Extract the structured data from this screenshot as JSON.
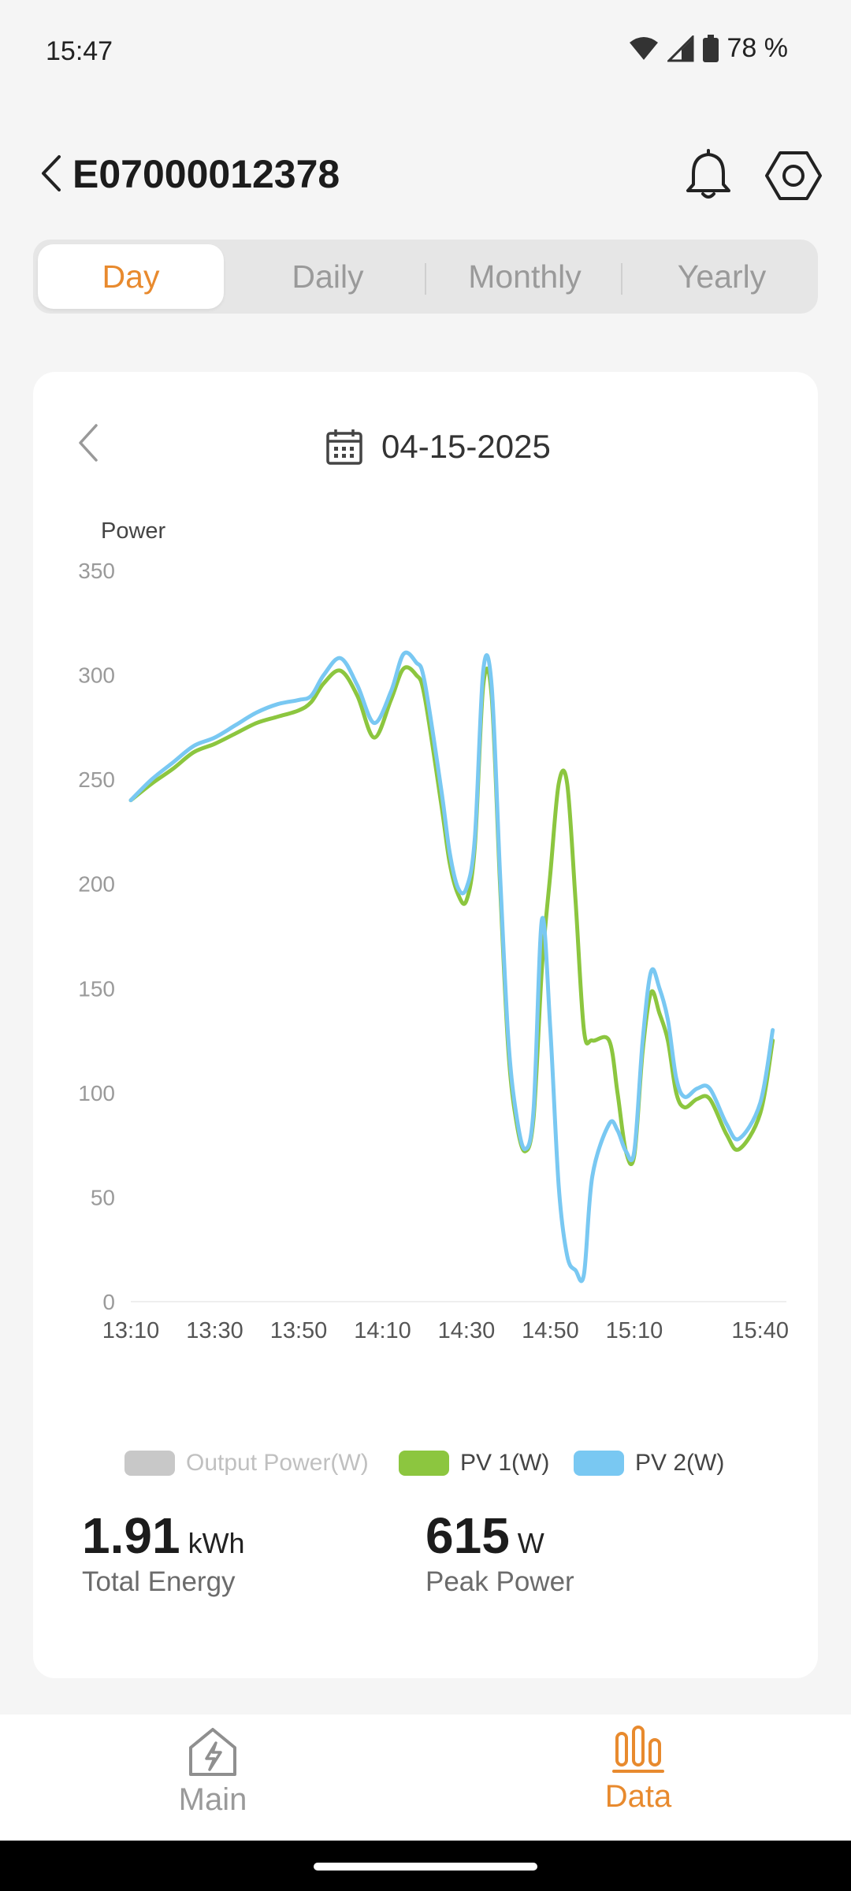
{
  "status": {
    "time": "15:47",
    "battery": "78 %",
    "icons": [
      "wifi-icon",
      "signal-icon",
      "battery-icon"
    ]
  },
  "header": {
    "device_id": "E07000012378",
    "icons": [
      "back-icon",
      "bell-icon",
      "settings-icon"
    ]
  },
  "tabs": [
    {
      "label": "Day",
      "active": true
    },
    {
      "label": "Daily",
      "active": false
    },
    {
      "label": "Monthly",
      "active": false
    },
    {
      "label": "Yearly",
      "active": false
    }
  ],
  "date_picker": {
    "date": "04-15-2025",
    "icons": [
      "chevron-left-icon",
      "calendar-icon"
    ]
  },
  "chart_data": {
    "type": "line",
    "ylabel": "Power",
    "ylim": [
      0,
      350
    ],
    "yticks": [
      "0",
      "50",
      "100",
      "150",
      "200",
      "250",
      "300",
      "350"
    ],
    "xlim": [
      "13:10",
      "15:44"
    ],
    "xticks": [
      "13:10",
      "13:30",
      "13:50",
      "14:10",
      "14:30",
      "14:50",
      "15:10",
      "15:40"
    ],
    "grid": false,
    "legend_position": "bottom",
    "series": [
      {
        "name": "Output Power(W)",
        "color": "#c8c8c8",
        "values": []
      },
      {
        "name": "PV 1(W)",
        "color": "#8cc63f",
        "x": [
          "13:10",
          "13:15",
          "13:20",
          "13:25",
          "13:30",
          "13:35",
          "13:40",
          "13:45",
          "13:50",
          "13:53",
          "13:56",
          "14:00",
          "14:04",
          "14:08",
          "14:12",
          "14:15",
          "14:18",
          "14:20",
          "14:24",
          "14:26",
          "14:28",
          "14:30",
          "14:32",
          "14:34",
          "14:36",
          "14:38",
          "14:40",
          "14:42",
          "14:44",
          "14:46",
          "14:48",
          "14:50",
          "14:52",
          "14:54",
          "14:56",
          "14:58",
          "15:00",
          "15:04",
          "15:06",
          "15:08",
          "15:10",
          "15:12",
          "15:14",
          "15:16",
          "15:18",
          "15:20",
          "15:22",
          "15:25",
          "15:28",
          "15:32",
          "15:35",
          "15:40",
          "15:43"
        ],
        "values": [
          240,
          248,
          255,
          263,
          267,
          272,
          277,
          280,
          283,
          287,
          296,
          302,
          290,
          270,
          288,
          303,
          300,
          290,
          238,
          210,
          195,
          192,
          218,
          295,
          290,
          200,
          120,
          85,
          72,
          88,
          160,
          205,
          248,
          248,
          192,
          130,
          125,
          125,
          100,
          72,
          70,
          120,
          148,
          138,
          125,
          100,
          93,
          97,
          97,
          80,
          73,
          90,
          125
        ]
      },
      {
        "name": "PV 2(W)",
        "color": "#79c8f2",
        "x": [
          "13:10",
          "13:15",
          "13:20",
          "13:25",
          "13:30",
          "13:35",
          "13:40",
          "13:45",
          "13:50",
          "13:53",
          "13:56",
          "14:00",
          "14:04",
          "14:08",
          "14:12",
          "14:15",
          "14:18",
          "14:20",
          "14:24",
          "14:26",
          "14:28",
          "14:30",
          "14:32",
          "14:34",
          "14:36",
          "14:38",
          "14:40",
          "14:42",
          "14:44",
          "14:46",
          "14:48",
          "14:50",
          "14:52",
          "14:54",
          "14:56",
          "14:58",
          "15:00",
          "15:04",
          "15:06",
          "15:08",
          "15:10",
          "15:12",
          "15:14",
          "15:16",
          "15:18",
          "15:20",
          "15:22",
          "15:25",
          "15:28",
          "15:32",
          "15:35",
          "15:40",
          "15:43"
        ],
        "values": [
          240,
          250,
          258,
          266,
          270,
          276,
          282,
          286,
          288,
          290,
          300,
          308,
          295,
          277,
          292,
          310,
          306,
          297,
          245,
          215,
          198,
          198,
          222,
          302,
          295,
          205,
          125,
          88,
          73,
          92,
          183,
          130,
          55,
          22,
          15,
          13,
          60,
          85,
          82,
          72,
          72,
          125,
          158,
          150,
          135,
          107,
          98,
          102,
          102,
          85,
          78,
          95,
          130
        ]
      }
    ]
  },
  "stats": [
    {
      "value": "1.91",
      "unit": "kWh",
      "label": "Total Energy"
    },
    {
      "value": "615",
      "unit": "W",
      "label": "Peak Power"
    }
  ],
  "bottom_nav": [
    {
      "label": "Main",
      "icon": "home-bolt-icon",
      "active": false
    },
    {
      "label": "Data",
      "icon": "bar-chart-icon",
      "active": true
    }
  ],
  "colors": {
    "accent": "#e88a2e",
    "background": "#f5f5f5",
    "card": "#ffffff",
    "inactive": "#9a9a9a"
  }
}
